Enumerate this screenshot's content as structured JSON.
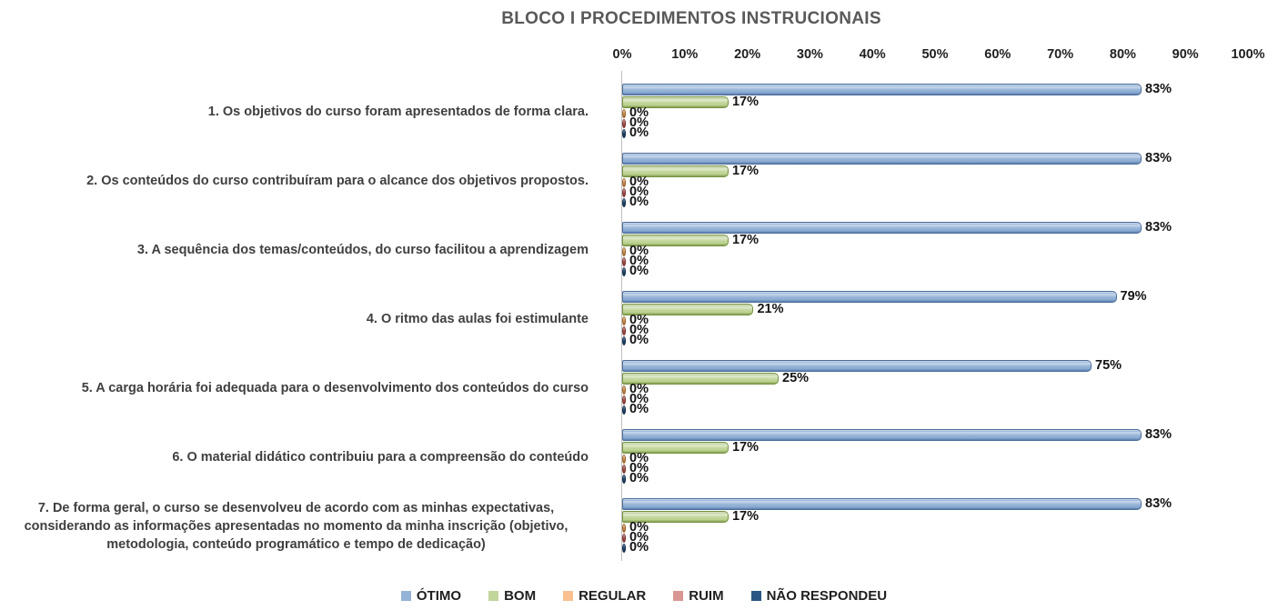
{
  "chart_data": {
    "type": "bar",
    "orientation": "horizontal",
    "title": "BLOCO I PROCEDIMENTOS INSTRUCIONAIS",
    "categories": [
      "1. Os objetivos do curso foram apresentados de forma clara.",
      "2. Os conteúdos do curso contribuíram para o alcance dos objetivos propostos.",
      "3. A sequência dos temas/conteúdos, do curso facilitou a aprendizagem",
      "4. O ritmo das aulas foi estimulante",
      "5. A carga horária foi adequada para o desenvolvimento dos conteúdos do curso",
      "6. O material didático contribuiu para a compreensão do conteúdo",
      "7. De forma geral, o curso se desenvolveu de acordo com as minhas expectativas, considerando as informações apresentadas no momento da minha inscrição (objetivo, metodologia, conteúdo programático e tempo de dedicação)"
    ],
    "series": [
      {
        "name": "ÓTIMO",
        "legend_color": "#95B3D7",
        "values": [
          83,
          83,
          83,
          79,
          75,
          83,
          83
        ]
      },
      {
        "name": "BOM",
        "legend_color": "#C3D69B",
        "values": [
          17,
          17,
          17,
          21,
          25,
          17,
          17
        ]
      },
      {
        "name": "REGULAR",
        "legend_color": "#FAC090",
        "values": [
          0,
          0,
          0,
          0,
          0,
          0,
          0
        ]
      },
      {
        "name": "RUIM",
        "legend_color": "#D99694",
        "values": [
          0,
          0,
          0,
          0,
          0,
          0,
          0
        ]
      },
      {
        "name": "NÃO RESPONDEU",
        "legend_color": "#2A5783",
        "values": [
          0,
          0,
          0,
          0,
          0,
          0,
          0
        ]
      }
    ],
    "value_suffix": "%",
    "x_axis": {
      "position": "top",
      "min": 0,
      "max": 100,
      "ticks": [
        "0%",
        "10%",
        "20%",
        "30%",
        "40%",
        "50%",
        "60%",
        "70%",
        "80%",
        "90%",
        "100%"
      ]
    },
    "legend_position": "bottom",
    "grid": false
  }
}
